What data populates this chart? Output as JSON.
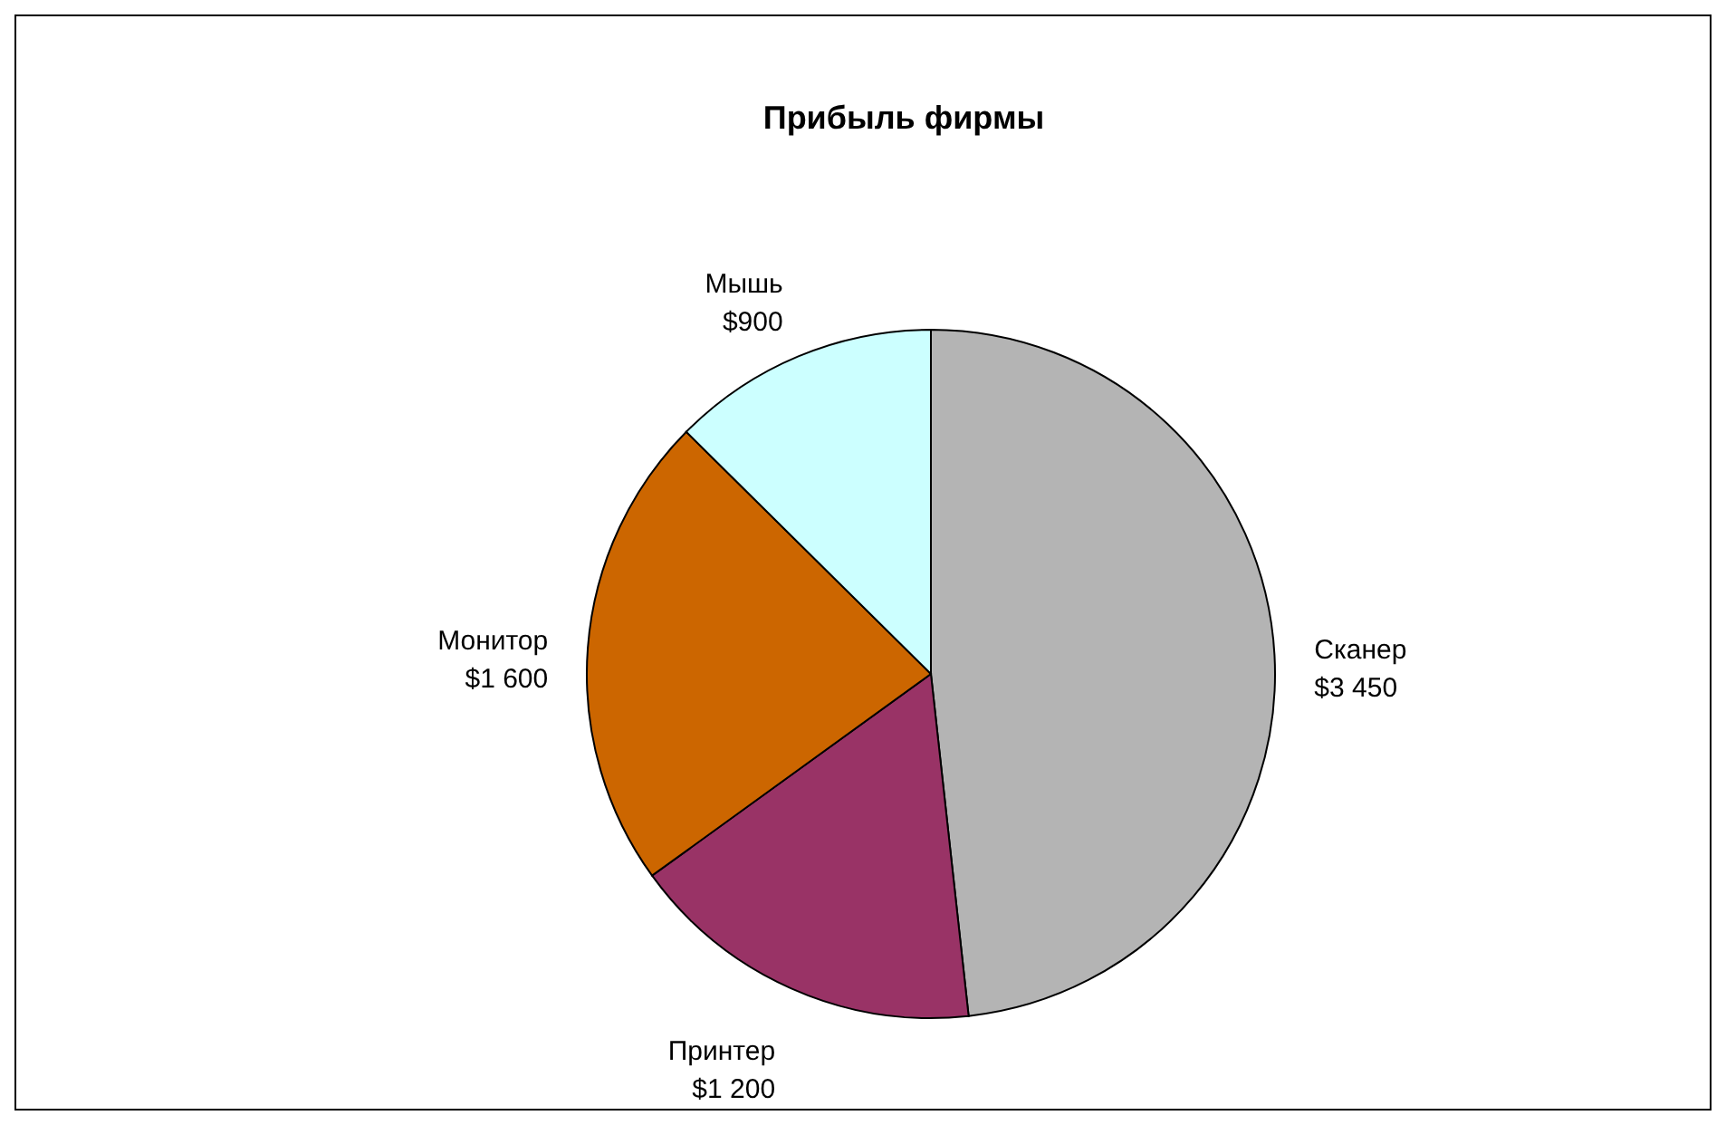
{
  "chart_data": {
    "type": "pie",
    "title": "Прибыль фирмы",
    "categories": [
      "Сканер",
      "Принтер",
      "Монитор",
      "Мышь"
    ],
    "values": [
      3450,
      1200,
      1600,
      900
    ],
    "value_labels": [
      "$3 450",
      "$1 200",
      "$1 600",
      "$900"
    ],
    "colors": [
      "#b4b4b4",
      "#993366",
      "#cc6600",
      "#ccffff"
    ],
    "legend": false
  }
}
